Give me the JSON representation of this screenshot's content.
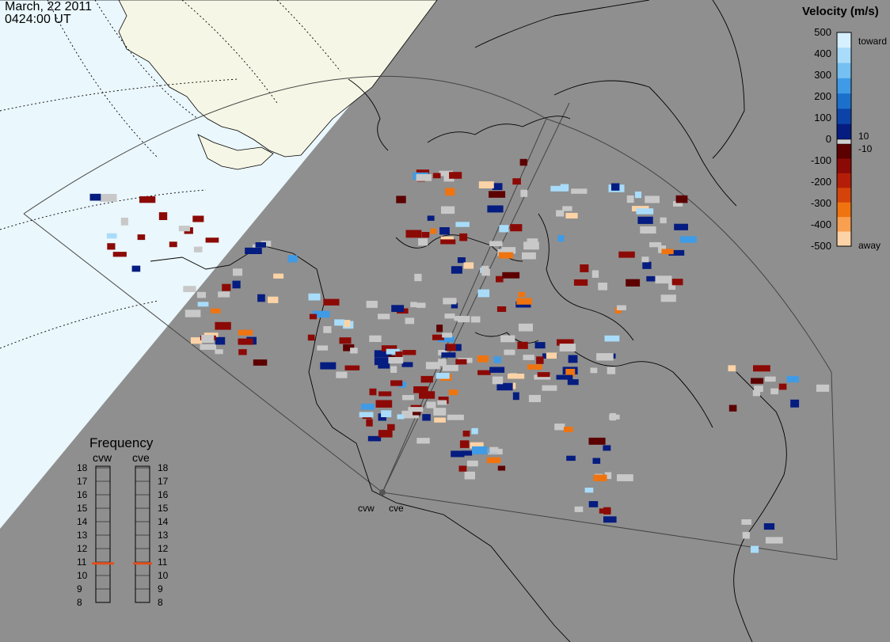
{
  "header": {
    "date": "March, 22 2011",
    "time": "0424:00 UT"
  },
  "colorbar": {
    "title": "Velocity (m/s)",
    "ticks": [
      "500",
      "400",
      "300",
      "200",
      "100",
      "0",
      "-100",
      "-200",
      "-300",
      "-400",
      "-500"
    ],
    "small_labels": [
      "10",
      "-10"
    ],
    "toward_label": "toward",
    "away_label": "away",
    "colors_toward": [
      "#d6f0ff",
      "#a8dcfa",
      "#74c0f2",
      "#3f9be6",
      "#1b70cc",
      "#0c43a8",
      "#051c80"
    ],
    "colors_away": [
      "#5c0000",
      "#8c0a06",
      "#b41e08",
      "#d4440a",
      "#ef7410",
      "#f8a050",
      "#fcd3a6"
    ]
  },
  "frequency": {
    "title": "Frequency",
    "radars": [
      "cvw",
      "cve"
    ],
    "scale": [
      "18",
      "17",
      "16",
      "15",
      "14",
      "13",
      "12",
      "11",
      "10",
      "9",
      "8"
    ],
    "current_mhz": [
      10.9,
      10.9
    ],
    "marker_color": "#e0501e"
  },
  "sites": {
    "west": "cvw",
    "east": "cve"
  },
  "colors": {
    "background": "#8f8f8f",
    "daylight": "#eaf7fc",
    "land_sun": "#f6f6e6",
    "ground_scatter": "#c8c8c8"
  }
}
